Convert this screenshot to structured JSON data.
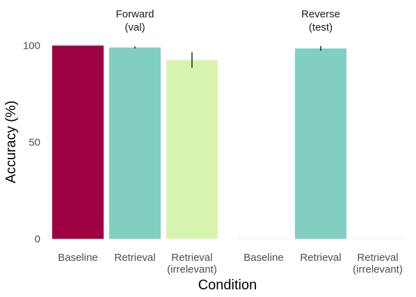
{
  "chart_data": {
    "type": "bar",
    "xlabel": "Condition",
    "ylabel": "Accuracy (%)",
    "ylim": [
      0,
      100
    ],
    "yticks": [
      0,
      50,
      100
    ],
    "grid": false,
    "categories": [
      [
        "Baseline"
      ],
      [
        "Retrieval"
      ],
      [
        "Retrieval",
        "(irrelevant)"
      ]
    ],
    "colors": {
      "Baseline": "#9e0142",
      "Retrieval": "#80cfc0",
      "Retrieval (irrelevant)": "#d7f4ae"
    },
    "facets": [
      {
        "label": [
          "Forward",
          "(val)"
        ],
        "values": [
          100,
          99,
          92.5
        ],
        "error": [
          null,
          [
            98.6,
            99.6
          ],
          [
            88.5,
            96.5
          ]
        ]
      },
      {
        "label": [
          "Reverse",
          "(test)"
        ],
        "values": [
          0,
          98.5,
          0
        ],
        "error": [
          null,
          [
            97.3,
            99.8
          ],
          null
        ]
      }
    ]
  }
}
